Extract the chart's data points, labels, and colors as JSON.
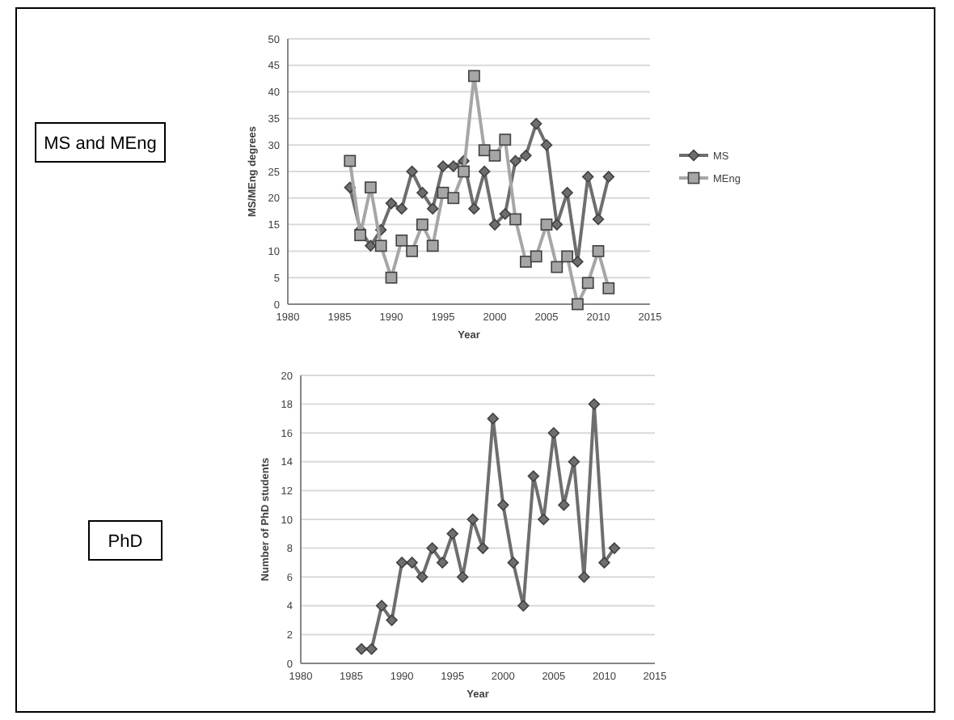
{
  "chart_data": [
    {
      "type": "line",
      "annotations": [
        "MS and MEng"
      ],
      "xlabel": "Year",
      "ylabel": "MS/MEng degrees",
      "x": [
        1986,
        1987,
        1988,
        1989,
        1990,
        1991,
        1992,
        1993,
        1994,
        1995,
        1996,
        1997,
        1998,
        1999,
        2000,
        2001,
        2002,
        2003,
        2004,
        2005,
        2006,
        2007,
        2008,
        2009,
        2010,
        2011
      ],
      "series": [
        {
          "name": "MS",
          "color": "#6e6e6e",
          "marker": "diamond",
          "values": [
            22,
            14,
            11,
            14,
            19,
            18,
            25,
            21,
            18,
            26,
            26,
            27,
            18,
            25,
            15,
            17,
            27,
            28,
            34,
            30,
            15,
            21,
            8,
            24,
            16,
            24
          ]
        },
        {
          "name": "MEng",
          "color": "#a6a6a6",
          "marker": "square",
          "values": [
            27,
            13,
            22,
            11,
            5,
            12,
            10,
            15,
            11,
            21,
            20,
            25,
            43,
            29,
            28,
            31,
            16,
            8,
            9,
            15,
            7,
            9,
            0,
            4,
            10,
            3
          ]
        }
      ],
      "xlim": [
        1980,
        2015
      ],
      "xticks": [
        1980,
        1985,
        1990,
        1995,
        2000,
        2005,
        2010,
        2015
      ],
      "ylim": [
        0,
        50
      ],
      "yticks": [
        0,
        5,
        10,
        15,
        20,
        25,
        30,
        35,
        40,
        45,
        50
      ],
      "grid": "y",
      "legend": "right"
    },
    {
      "type": "line",
      "annotations": [
        "PhD"
      ],
      "xlabel": "Year",
      "ylabel": "Number of PhD students",
      "x": [
        1986,
        1987,
        1988,
        1989,
        1990,
        1991,
        1992,
        1993,
        1994,
        1995,
        1996,
        1997,
        1998,
        1999,
        2000,
        2001,
        2002,
        2003,
        2004,
        2005,
        2006,
        2007,
        2008,
        2009,
        2010,
        2011
      ],
      "series": [
        {
          "color": "#6e6e6e",
          "marker": "diamond",
          "values": [
            1,
            1,
            4,
            3,
            7,
            7,
            6,
            8,
            7,
            9,
            6,
            10,
            8,
            17,
            11,
            7,
            4,
            13,
            10,
            16,
            11,
            14,
            6,
            18,
            7,
            8
          ]
        }
      ],
      "xlim": [
        1980,
        2015
      ],
      "xticks": [
        1980,
        1985,
        1990,
        1995,
        2000,
        2005,
        2010,
        2015
      ],
      "ylim": [
        0,
        20
      ],
      "yticks": [
        0,
        2,
        4,
        6,
        8,
        10,
        12,
        14,
        16,
        18,
        20
      ],
      "grid": "y",
      "legend": false
    }
  ]
}
